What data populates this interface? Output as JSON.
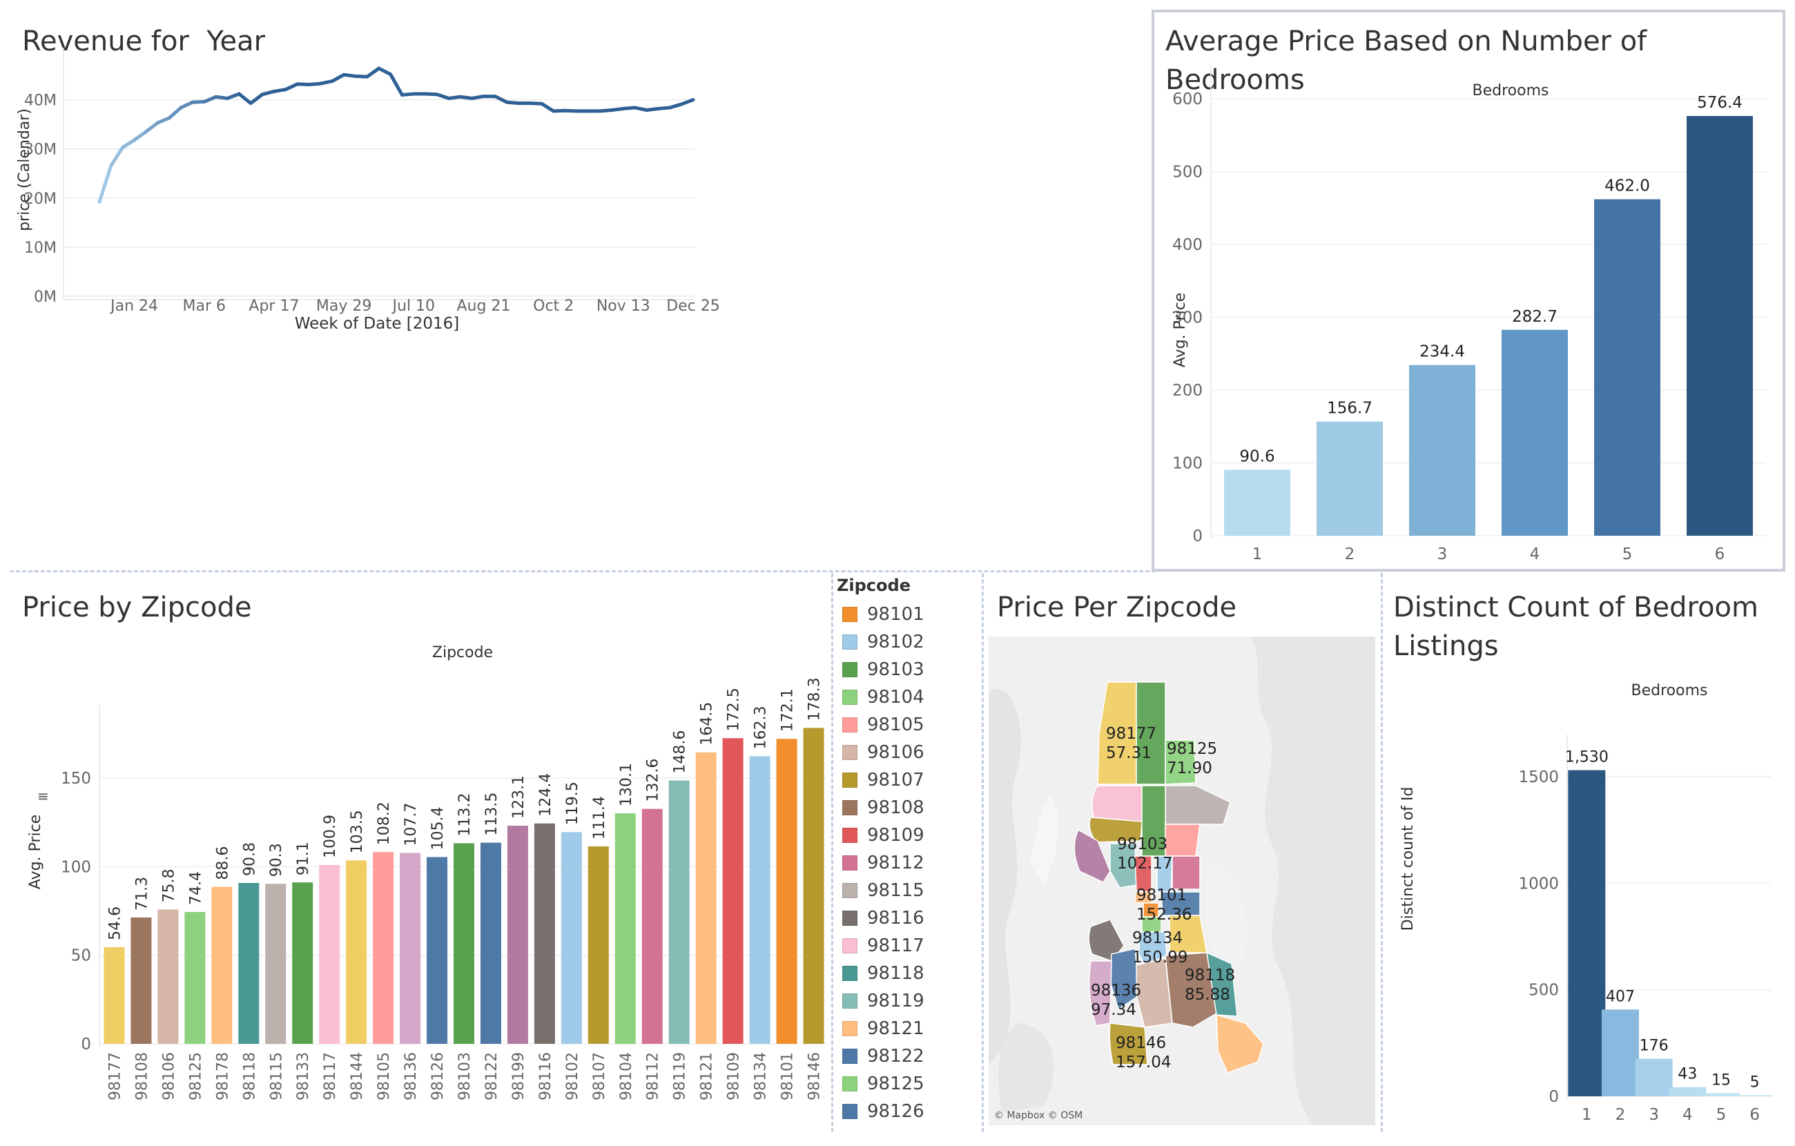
{
  "revenue_panel": {
    "title": "Revenue for  Year",
    "chart_data": {
      "type": "line",
      "title": "Revenue for  Year",
      "xlabel": "Week of Date [2016]",
      "ylabel": "price (Calendar)",
      "x_ticks": [
        "Jan 24",
        "Mar 6",
        "Apr 17",
        "May 29",
        "Jul 10",
        "Aug 21",
        "Oct 2",
        "Nov 13",
        "Dec 25"
      ],
      "y_ticks": [
        "0M",
        "10M",
        "20M",
        "30M",
        "40M"
      ],
      "ylim": [
        0,
        45000000
      ],
      "x": [
        "2016-01-03",
        "2016-01-10",
        "2016-01-17",
        "2016-01-24",
        "2016-01-31",
        "2016-02-07",
        "2016-02-14",
        "2016-02-21",
        "2016-02-28",
        "2016-03-06",
        "2016-03-13",
        "2016-03-20",
        "2016-03-27",
        "2016-04-03",
        "2016-04-10",
        "2016-04-17",
        "2016-04-24",
        "2016-05-01",
        "2016-05-08",
        "2016-05-15",
        "2016-05-22",
        "2016-05-29",
        "2016-06-05",
        "2016-06-12",
        "2016-06-19",
        "2016-06-26",
        "2016-07-03",
        "2016-07-10",
        "2016-07-17",
        "2016-07-24",
        "2016-07-31",
        "2016-08-07",
        "2016-08-14",
        "2016-08-21",
        "2016-08-28",
        "2016-09-04",
        "2016-09-11",
        "2016-09-18",
        "2016-09-25",
        "2016-10-02",
        "2016-10-09",
        "2016-10-16",
        "2016-10-23",
        "2016-10-30",
        "2016-11-06",
        "2016-11-13",
        "2016-11-20",
        "2016-11-27",
        "2016-12-04",
        "2016-12-11",
        "2016-12-18",
        "2016-12-25"
      ],
      "values": [
        19200000,
        26600000,
        30300000,
        31800000,
        33500000,
        35300000,
        36300000,
        38400000,
        39500000,
        39600000,
        40600000,
        40300000,
        41200000,
        39300000,
        41100000,
        41700000,
        42100000,
        43200000,
        43100000,
        43300000,
        43800000,
        45100000,
        44800000,
        44700000,
        46400000,
        45200000,
        41000000,
        41200000,
        41200000,
        41100000,
        40300000,
        40600000,
        40300000,
        40700000,
        40700000,
        39500000,
        39300000,
        39300000,
        39200000,
        37700000,
        37800000,
        37700000,
        37700000,
        37700000,
        37900000,
        38200000,
        38400000,
        37900000,
        38200000,
        38400000,
        39100000,
        40000000
      ]
    }
  },
  "bedroom_price_panel": {
    "title": "Average Price Based on Number of Bedrooms",
    "chart_data": {
      "type": "bar",
      "title": "Average Price Based on Number of Bedrooms",
      "header": "Bedrooms",
      "ylabel": "Avg. Price",
      "categories": [
        "1",
        "2",
        "3",
        "4",
        "5",
        "6"
      ],
      "values": [
        90.6,
        156.7,
        234.4,
        282.7,
        462.0,
        576.4
      ],
      "value_labels": [
        "90.6",
        "156.7",
        "234.4",
        "282.7",
        "462.0",
        "576.4"
      ],
      "colors": [
        "#b8dcef",
        "#9ecae6",
        "#7fb0d6",
        "#6097c6",
        "#4474a6",
        "#2b5780"
      ],
      "y_ticks": [
        "0",
        "100",
        "200",
        "300",
        "400",
        "500",
        "600"
      ],
      "ylim": [
        0,
        620
      ]
    }
  },
  "zipcode_price_panel": {
    "title": "Price by Zipcode",
    "chart_data": {
      "type": "bar",
      "title": "Price by Zipcode",
      "header": "Zipcode",
      "ylabel": "Avg. Price",
      "categories": [
        "98177",
        "98108",
        "98106",
        "98125",
        "98178",
        "98118",
        "98115",
        "98133",
        "98117",
        "98144",
        "98105",
        "98136",
        "98126",
        "98103",
        "98122",
        "98199",
        "98116",
        "98102",
        "98107",
        "98104",
        "98112",
        "98119",
        "98121",
        "98109",
        "98134",
        "98101",
        "98146"
      ],
      "values": [
        54.6,
        71.3,
        75.8,
        74.4,
        88.6,
        90.8,
        90.3,
        91.1,
        100.9,
        103.5,
        108.2,
        107.7,
        105.4,
        113.2,
        113.5,
        123.1,
        124.4,
        119.5,
        111.4,
        130.1,
        132.6,
        148.6,
        164.5,
        172.5,
        162.3,
        172.1,
        178.3
      ],
      "value_labels": [
        "54.6",
        "71.3",
        "75.8",
        "74.4",
        "88.6",
        "90.8",
        "90.3",
        "91.1",
        "100.9",
        "103.5",
        "108.2",
        "107.7",
        "105.4",
        "113.2",
        "113.5",
        "123.1",
        "124.4",
        "119.5",
        "111.4",
        "130.1",
        "132.6",
        "148.6",
        "164.5",
        "172.5",
        "162.3",
        "172.1",
        "178.3"
      ],
      "y_ticks": [
        "0",
        "50",
        "100",
        "150"
      ],
      "ylim": [
        0,
        180
      ]
    }
  },
  "zip_colors": {
    "98101": "#f28e2b",
    "98102": "#a0cbe8",
    "98103": "#59a14f",
    "98104": "#8cd17d",
    "98105": "#ff9d9a",
    "98106": "#d4b5a8",
    "98107": "#b6992d",
    "98108": "#9c755f",
    "98109": "#e15759",
    "98112": "#d37295",
    "98115": "#bab0ac",
    "98116": "#79706e",
    "98117": "#fabfd2",
    "98118": "#499894",
    "98119": "#86bcb6",
    "98121": "#ffbe7d",
    "98122": "#4e79a7",
    "98125": "#8cd17d",
    "98126": "#4e79a7",
    "98133": "#59a14f",
    "98134": "#a0cbe8",
    "98136": "#d4a6c8",
    "98144": "#f1ce63",
    "98146": "#b6992d",
    "98177": "#f1ce63",
    "98178": "#ffbe7d",
    "98199": "#b07aa1"
  },
  "legend": {
    "title": "Zipcode",
    "items": [
      {
        "label": "98101",
        "color": "#f28e2b"
      },
      {
        "label": "98102",
        "color": "#a0cbe8"
      },
      {
        "label": "98103",
        "color": "#59a14f"
      },
      {
        "label": "98104",
        "color": "#8cd17d"
      },
      {
        "label": "98105",
        "color": "#ff9d9a"
      },
      {
        "label": "98106",
        "color": "#d4b5a8"
      },
      {
        "label": "98107",
        "color": "#b6992d"
      },
      {
        "label": "98108",
        "color": "#9c755f"
      },
      {
        "label": "98109",
        "color": "#e15759"
      },
      {
        "label": "98112",
        "color": "#d37295"
      },
      {
        "label": "98115",
        "color": "#bab0ac"
      },
      {
        "label": "98116",
        "color": "#79706e"
      },
      {
        "label": "98117",
        "color": "#fabfd2"
      },
      {
        "label": "98118",
        "color": "#499894"
      },
      {
        "label": "98119",
        "color": "#86bcb6"
      },
      {
        "label": "98121",
        "color": "#ffbe7d"
      },
      {
        "label": "98122",
        "color": "#4e79a7"
      },
      {
        "label": "98125",
        "color": "#8cd17d"
      },
      {
        "label": "98126",
        "color": "#4e79a7"
      }
    ]
  },
  "map_panel": {
    "title": "Price Per Zipcode",
    "labels": [
      {
        "zip": "98177",
        "value": "57.31"
      },
      {
        "zip": "98125",
        "value": "71.90"
      },
      {
        "zip": "98103",
        "value": "102.17"
      },
      {
        "zip": "98101",
        "value": "152.36"
      },
      {
        "zip": "98134",
        "value": "150.99"
      },
      {
        "zip": "98118",
        "value": "85.88"
      },
      {
        "zip": "98136",
        "value": "97.34"
      },
      {
        "zip": "98146",
        "value": "157.04"
      }
    ],
    "credit": "© Mapbox © OSM"
  },
  "bedroom_count_panel": {
    "title_line1": "Distinct Count of Bedroom",
    "title_line2": "Listings",
    "chart_data": {
      "type": "bar",
      "title": "Distinct Count of Bedroom Listings",
      "header": "Bedrooms",
      "ylabel": "Distinct count of Id",
      "categories": [
        "1",
        "2",
        "3",
        "4",
        "5",
        "6"
      ],
      "values": [
        1530,
        407,
        176,
        43,
        15,
        5
      ],
      "value_labels": [
        "1,530",
        "407",
        "176",
        "43",
        "15",
        "5"
      ],
      "colors": [
        "#2b5780",
        "#8ab9df",
        "#a8d0ec",
        "#b8dcf0",
        "#c3e2f3",
        "#c8e4f4"
      ],
      "y_ticks": [
        "0",
        "500",
        "1000",
        "1500"
      ],
      "ylim": [
        0,
        1600
      ]
    }
  }
}
